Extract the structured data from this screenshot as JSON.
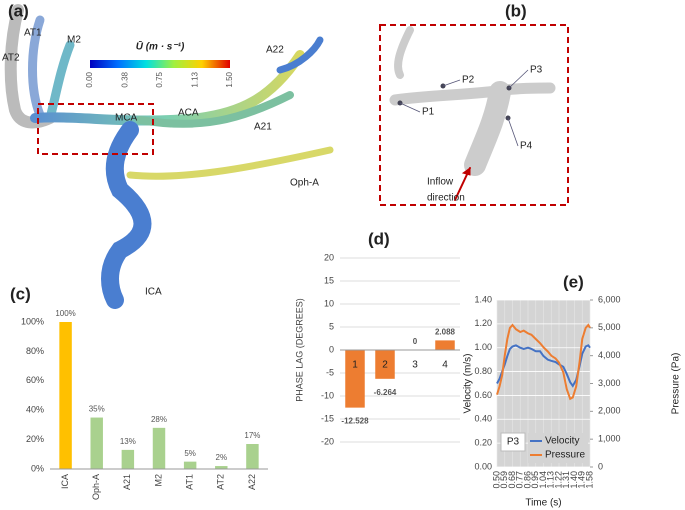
{
  "figure": {
    "panel_labels": [
      "(a)",
      "(b)",
      "(c)",
      "(d)",
      "(e)"
    ]
  },
  "panel_a": {
    "labels": [
      "AT2",
      "AT1",
      "M2",
      "A22",
      "MCA",
      "ACA",
      "A21",
      "Oph-A",
      "ICA"
    ],
    "colorbar": {
      "title": "Ū (m · s⁻¹)",
      "lim": [
        0,
        1.5
      ],
      "ticks": [
        {
          "value": 0,
          "label": "0.00"
        },
        {
          "value": 0.38,
          "label": "0.38"
        },
        {
          "value": 0.75,
          "label": "0.75"
        },
        {
          "value": 1.13,
          "label": "1.13"
        },
        {
          "value": 1.5,
          "label": "1.50"
        }
      ]
    }
  },
  "panel_b": {
    "points": [
      "P1",
      "P2",
      "P3",
      "P4"
    ],
    "inflow": [
      "Inflow",
      "direction"
    ]
  },
  "chart_data": [
    {
      "type": "bar",
      "categories": [
        "ICA",
        "Oph-A",
        "A21",
        "M2",
        "AT1",
        "AT2",
        "A22"
      ],
      "values": [
        100,
        35,
        13,
        28,
        5,
        2,
        17
      ],
      "value_labels": [
        "100%",
        "35%",
        "13%",
        "28%",
        "5%",
        "2%",
        "17%"
      ],
      "colors": [
        "#ffc000",
        "#a9d18e",
        "#a9d18e",
        "#a9d18e",
        "#a9d18e",
        "#a9d18e",
        "#a9d18e"
      ],
      "ylim": [
        0,
        100
      ],
      "yticks": [
        {
          "value": 0,
          "label": "0%"
        },
        {
          "value": 20,
          "label": "20%"
        },
        {
          "value": 40,
          "label": "40%"
        },
        {
          "value": 60,
          "label": "60%"
        },
        {
          "value": 80,
          "label": "80%"
        },
        {
          "value": 100,
          "label": "100%"
        }
      ],
      "grid": false
    },
    {
      "type": "bar",
      "y_label": "PHASE LAG (DEGREES)",
      "categories": [
        "1",
        "2",
        "3",
        "4"
      ],
      "values": [
        -12.528,
        -6.264,
        0,
        2.088
      ],
      "color": "#ed7d31",
      "value_label_color": "#4472c4",
      "ylim": [
        -20,
        20
      ],
      "yticks": [
        -20,
        -15,
        -10,
        -5,
        0,
        5,
        10,
        15,
        20
      ],
      "grid": true
    },
    {
      "type": "line",
      "x_label": "Time (s)",
      "y_label": "Velocity (m/s)",
      "y2_label": "Pressure (Pa)",
      "annotation": "P3",
      "x": [
        0.5,
        0.53,
        0.56,
        0.59,
        0.62,
        0.65,
        0.68,
        0.72,
        0.77,
        0.81,
        0.86,
        0.9,
        0.95,
        1.0,
        1.04,
        1.09,
        1.13,
        1.18,
        1.22,
        1.27,
        1.31,
        1.35,
        1.38,
        1.42,
        1.46,
        1.49,
        1.53,
        1.56,
        1.58
      ],
      "xlim": [
        0.5,
        1.58
      ],
      "xticks": [
        {
          "value": 0.5,
          "label": "0.50"
        },
        0.59,
        0.68,
        0.77,
        0.86,
        0.95,
        1.04,
        1.13,
        1.22,
        1.31,
        {
          "value": 1.4,
          "label": "1.40"
        },
        1.49,
        1.58
      ],
      "ylim": [
        0,
        1.4
      ],
      "yticks": [
        {
          "value": 0,
          "label": "0.00"
        },
        {
          "value": 0.2,
          "label": "0.20"
        },
        {
          "value": 0.4,
          "label": "0.40"
        },
        {
          "value": 0.6,
          "label": "0.60"
        },
        {
          "value": 0.8,
          "label": "0.80"
        },
        {
          "value": 1,
          "label": "1.00"
        },
        {
          "value": 1.2,
          "label": "1.20"
        },
        {
          "value": 1.4,
          "label": "1.40"
        }
      ],
      "y2lim": [
        0,
        6000
      ],
      "y2ticks": [
        0,
        {
          "value": 1000,
          "label": "1,000"
        },
        {
          "value": 2000,
          "label": "2,000"
        },
        {
          "value": 3000,
          "label": "3,000"
        },
        {
          "value": 4000,
          "label": "4,000"
        },
        {
          "value": 5000,
          "label": "5,000"
        },
        {
          "value": 6000,
          "label": "6,000"
        }
      ],
      "grid": true,
      "legend": "bottom-right",
      "series": [
        {
          "name": "Velocity",
          "color": "#4472c4",
          "values": [
            0.7,
            0.74,
            0.8,
            0.86,
            0.93,
            0.99,
            1.01,
            1.02,
            1.0,
            0.99,
            1.0,
            0.99,
            0.97,
            0.97,
            0.93,
            0.9,
            0.89,
            0.88,
            0.86,
            0.84,
            0.78,
            0.71,
            0.68,
            0.73,
            0.85,
            0.95,
            1.01,
            1.02,
            1.0
          ]
        },
        {
          "name": "Pressure",
          "color": "#ed7d31",
          "axis": "y2",
          "values": [
            2600,
            2900,
            3300,
            4000,
            4600,
            5000,
            5100,
            4950,
            4850,
            4900,
            4800,
            4750,
            4600,
            4450,
            4300,
            4150,
            4000,
            3900,
            3750,
            3400,
            2800,
            2450,
            2500,
            2900,
            3800,
            4600,
            5000,
            5100,
            5000
          ]
        }
      ]
    }
  ]
}
